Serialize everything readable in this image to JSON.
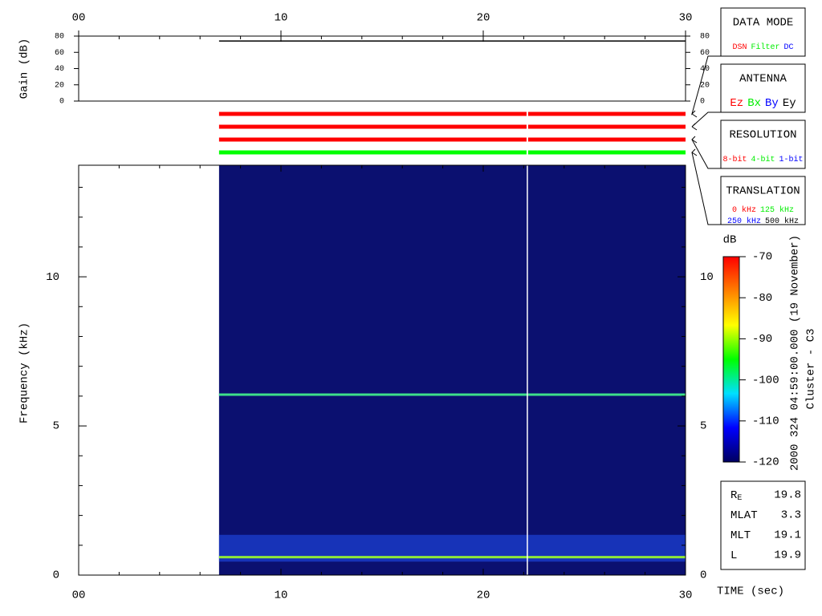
{
  "chart_data": [
    {
      "type": "line",
      "ylabel": "Gain (dB)",
      "xlim": [
        0,
        30
      ],
      "xticks": [
        {
          "value": 0,
          "label": "00"
        },
        10,
        20,
        30
      ],
      "xminorticks": [
        2,
        4,
        6,
        8,
        12,
        14,
        16,
        18,
        22,
        24,
        26,
        28
      ],
      "ylim": [
        0,
        80
      ],
      "yticks": [
        0,
        20,
        40,
        60,
        80
      ],
      "series": [
        {
          "color": "#000000",
          "x": [
            6.94,
            30
          ],
          "values": [
            74,
            74
          ]
        }
      ]
    },
    {
      "type": "status",
      "x": [
        6.94,
        30
      ],
      "gap": 22.18,
      "bars": [
        {
          "color": "#ff0000"
        },
        {
          "color": "#ff0000"
        },
        {
          "color": "#ff0000"
        },
        {
          "color": "#00ff00"
        }
      ]
    },
    {
      "type": "spectrogram",
      "ylabel": "Frequency (kHz)",
      "xlabel": "TIME (sec)",
      "xlim": [
        0,
        30
      ],
      "xticks": [
        {
          "value": 0,
          "label": "00"
        },
        10,
        20,
        30
      ],
      "xminorticks": [
        2,
        4,
        6,
        8,
        12,
        14,
        16,
        18,
        22,
        24,
        26,
        28
      ],
      "ylim": [
        0,
        13.74
      ],
      "yticks": [
        0,
        5,
        10
      ],
      "yminorticks": [
        1,
        2,
        3,
        4,
        6,
        7,
        8,
        9,
        11,
        12,
        13
      ],
      "x_start": 6.94,
      "gap": 22.18,
      "background": "#0b1070",
      "bands": [
        {
          "color": "#1c3fd0",
          "ylim": [
            0.45,
            1.35
          ]
        }
      ],
      "series": [
        {
          "color": "#3ee08a",
          "x": [
            6.94,
            30
          ],
          "values": [
            6.05,
            6.05
          ]
        },
        {
          "color": "#8fe83a",
          "x": [
            6.94,
            30
          ],
          "values": [
            0.6,
            0.6
          ]
        }
      ]
    },
    {
      "type": "colorbar",
      "label": "dB",
      "zlim": [
        -120,
        -70
      ],
      "zticks": [
        -120,
        -110,
        -100,
        -90,
        -80,
        -70
      ],
      "colors": [
        "#000060",
        "#0000ff",
        "#00e0ff",
        "#00ff00",
        "#ffff00",
        "#ff8000",
        "#ff0000"
      ]
    }
  ],
  "legends": [
    {
      "title": "DATA MODE",
      "items": [
        {
          "text": "DSN",
          "color": "#ff0000"
        },
        {
          "text": "Filter",
          "color": "#00ee00"
        },
        {
          "text": "DC",
          "color": "#0000ff"
        }
      ]
    },
    {
      "title": "ANTENNA",
      "items": [
        {
          "text": "Ez",
          "color": "#ff0000"
        },
        {
          "text": "Bx",
          "color": "#00ee00"
        },
        {
          "text": "By",
          "color": "#0000ff"
        },
        {
          "text": "Ey",
          "color": "#000000"
        }
      ]
    },
    {
      "title": "RESOLUTION",
      "items": [
        {
          "text": "8-bit",
          "color": "#ff0000"
        },
        {
          "text": "4-bit",
          "color": "#00ee00"
        },
        {
          "text": "1-bit",
          "color": "#0000ff"
        }
      ]
    },
    {
      "title": "TRANSLATION",
      "items": [
        {
          "text": "0 kHz",
          "color": "#ff0000"
        },
        {
          "text": "125 kHz",
          "color": "#00ee00"
        },
        {
          "text": "250 kHz",
          "color": "#0000ff"
        },
        {
          "text": "500 kHz",
          "color": "#000000"
        }
      ]
    }
  ],
  "info": {
    "rows": [
      {
        "label": "R",
        "sub": "E",
        "value": "19.8"
      },
      {
        "label": "MLAT",
        "value": "3.3"
      },
      {
        "label": "MLT",
        "value": "19.1"
      },
      {
        "label": "L",
        "value": "19.9"
      }
    ]
  },
  "annotations": {
    "date": "2000 324 04:59:00.000 (19 November)",
    "spacecraft": "Cluster - C3"
  }
}
